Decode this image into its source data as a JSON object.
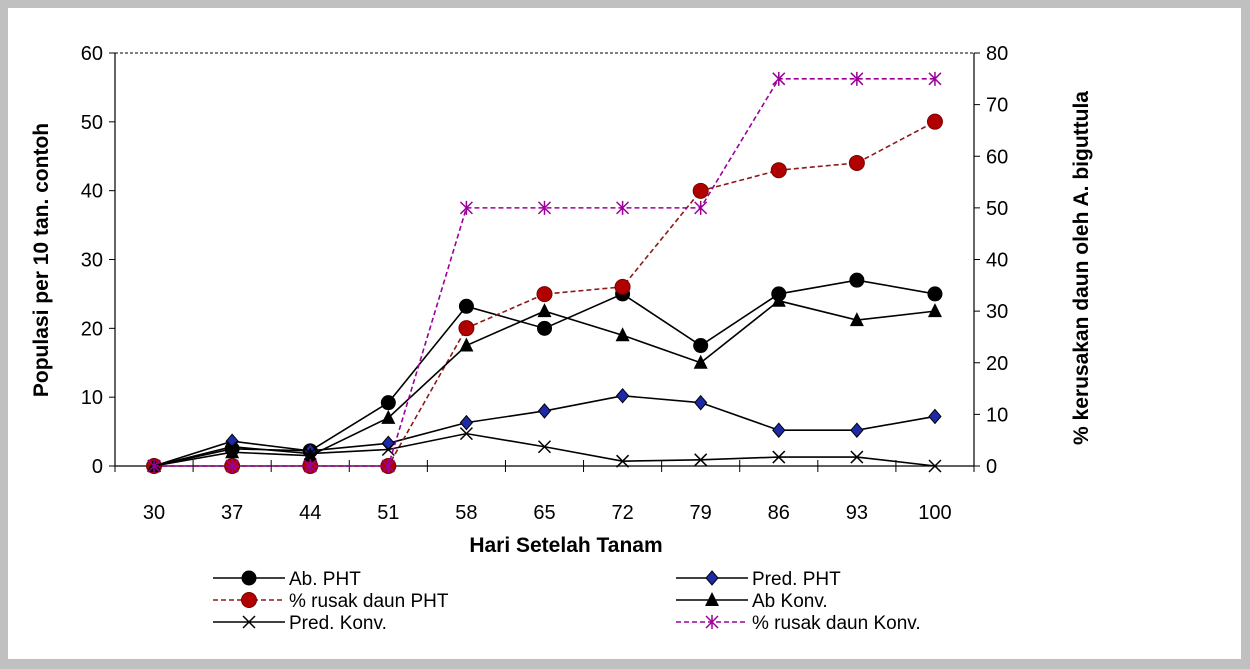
{
  "chart_data": {
    "type": "line",
    "title": "",
    "xlabel": "Hari Setelah Tanam",
    "ylabel": "Populasi per 10 tan. contoh",
    "y2label": "% kerusakan daun oleh A. biguttula",
    "categories": [
      "30",
      "37",
      "44",
      "51",
      "58",
      "65",
      "72",
      "79",
      "86",
      "93",
      "100"
    ],
    "ylim": [
      0,
      60
    ],
    "y2lim": [
      0,
      80
    ],
    "yticks": [
      0,
      10,
      20,
      30,
      40,
      50,
      60
    ],
    "y2ticks": [
      0,
      10,
      20,
      30,
      40,
      50,
      60,
      70,
      80
    ],
    "grid": false,
    "legend_position": "bottom",
    "series": [
      {
        "name": "Ab. PHT",
        "axis": "left",
        "color": "#000000",
        "dash": false,
        "marker": "circle",
        "values": [
          0,
          2.5,
          2.2,
          9.2,
          23.2,
          20,
          25,
          17.5,
          25,
          27,
          25
        ]
      },
      {
        "name": "Pred.  PHT",
        "axis": "left",
        "color": "#000000",
        "dash": false,
        "marker": "diamond",
        "values": [
          0,
          3.6,
          2.2,
          3.3,
          6.3,
          8,
          10.2,
          9.2,
          5.2,
          5.2,
          7.2
        ]
      },
      {
        "name": "% rusak daun PHT",
        "axis": "right",
        "color": "#8b1a1a",
        "dash": true,
        "marker": "circle-red",
        "values": [
          0,
          0,
          0,
          0,
          26.7,
          33.3,
          34.7,
          53.3,
          57.3,
          58.7,
          66.7
        ]
      },
      {
        "name": "Ab Konv.",
        "axis": "left",
        "color": "#000000",
        "dash": false,
        "marker": "triangle",
        "values": [
          0,
          2,
          1.5,
          7,
          17.5,
          22.5,
          19,
          15,
          24,
          21.2,
          22.5
        ]
      },
      {
        "name": "Pred.  Konv.",
        "axis": "left",
        "color": "#000000",
        "dash": false,
        "marker": "x",
        "values": [
          0,
          2.8,
          1.8,
          2.4,
          4.7,
          2.8,
          0.7,
          0.9,
          1.3,
          1.3,
          0
        ]
      },
      {
        "name": "% rusak daun Konv.",
        "axis": "right",
        "color": "#9b009b",
        "dash": true,
        "marker": "star",
        "values": [
          0,
          0,
          0,
          0,
          50,
          50,
          50,
          50,
          75,
          75,
          75
        ]
      }
    ]
  }
}
